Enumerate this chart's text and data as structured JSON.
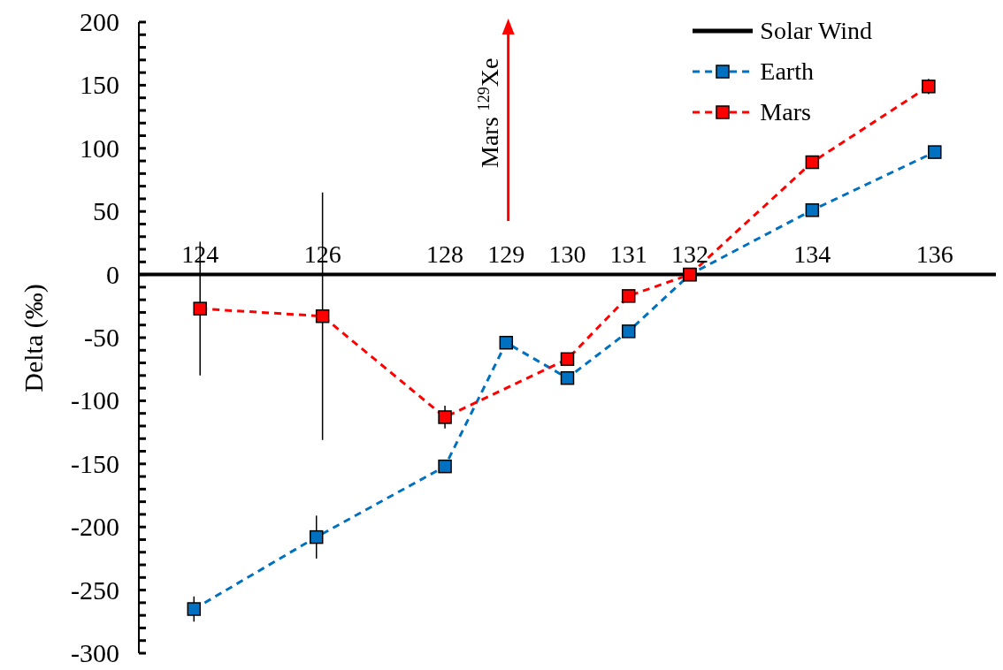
{
  "chart_data": {
    "type": "line",
    "ylabel": "Delta (‰)",
    "xlim": [
      123,
      137
    ],
    "xticks": [
      124,
      126,
      128,
      129,
      130,
      131,
      132,
      134,
      136
    ],
    "ylim": [
      -300,
      200
    ],
    "yticks": [
      200,
      {
        "value": 190,
        "label": null
      },
      {
        "value": 180,
        "label": null
      },
      {
        "value": 170,
        "label": null
      },
      {
        "value": 160,
        "label": null
      },
      150,
      {
        "value": 140,
        "label": null
      },
      {
        "value": 130,
        "label": null
      },
      {
        "value": 120,
        "label": null
      },
      {
        "value": 110,
        "label": null
      },
      100,
      {
        "value": 90,
        "label": null
      },
      {
        "value": 80,
        "label": null
      },
      {
        "value": 70,
        "label": null
      },
      {
        "value": 60,
        "label": null
      },
      50,
      {
        "value": 40,
        "label": null
      },
      {
        "value": 30,
        "label": null
      },
      {
        "value": 20,
        "label": null
      },
      {
        "value": 10,
        "label": null
      },
      0,
      {
        "value": -10,
        "label": null
      },
      {
        "value": -20,
        "label": null
      },
      {
        "value": -30,
        "label": null
      },
      {
        "value": -40,
        "label": null
      },
      -50,
      {
        "value": -60,
        "label": null
      },
      {
        "value": -70,
        "label": null
      },
      {
        "value": -80,
        "label": null
      },
      {
        "value": -90,
        "label": null
      },
      -100,
      {
        "value": -110,
        "label": null
      },
      {
        "value": -120,
        "label": null
      },
      {
        "value": -130,
        "label": null
      },
      {
        "value": -140,
        "label": null
      },
      -150,
      {
        "value": -160,
        "label": null
      },
      {
        "value": -170,
        "label": null
      },
      {
        "value": -180,
        "label": null
      },
      {
        "value": -190,
        "label": null
      },
      -200,
      {
        "value": -210,
        "label": null
      },
      {
        "value": -220,
        "label": null
      },
      {
        "value": -230,
        "label": null
      },
      {
        "value": -240,
        "label": null
      },
      -250,
      {
        "value": -260,
        "label": null
      },
      {
        "value": -270,
        "label": null
      },
      {
        "value": -280,
        "label": null
      },
      {
        "value": -290,
        "label": null
      },
      -300
    ],
    "grid": false,
    "legend": "top right",
    "marker": "square",
    "line_style": "dashed",
    "series": [
      {
        "name": "Solar Wind",
        "color": "#000000",
        "marker": "none",
        "line_style": "solid",
        "x": [
          123,
          137
        ],
        "values": [
          0,
          0
        ]
      },
      {
        "name": "Earth",
        "color": "#0070c0",
        "x": [
          123.9,
          125.9,
          128,
          129,
          130,
          131,
          132,
          134,
          136
        ],
        "values": [
          -265,
          -208,
          -152,
          -54,
          -82,
          -45,
          0,
          51,
          97
        ],
        "errors": [
          10,
          17,
          null,
          null,
          null,
          null,
          null,
          null,
          null
        ]
      },
      {
        "name": "Mars",
        "color": "#ff0000",
        "x": [
          124,
          126,
          128,
          130,
          131,
          132,
          134,
          135.9
        ],
        "values": [
          -27,
          -33,
          -113,
          -67,
          -17,
          0,
          89,
          149
        ],
        "errors": [
          53,
          98,
          9,
          null,
          null,
          null,
          null,
          6
        ]
      }
    ],
    "annotations": [
      "Mars $^{129}$Xe"
    ]
  }
}
